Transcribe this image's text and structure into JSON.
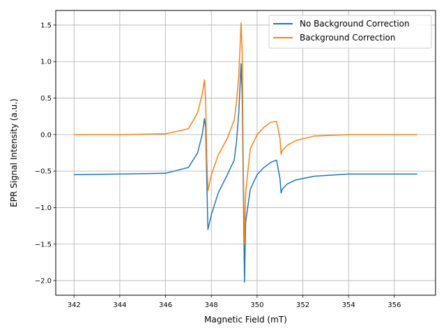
{
  "chart_data": {
    "type": "line",
    "title": "",
    "xlabel": "Magnetic Field (mT)",
    "ylabel": "EPR Signal Intensity (a.u.)",
    "xlim": [
      341.2,
      357.8
    ],
    "ylim": [
      -2.2,
      1.7
    ],
    "xticks": [
      342,
      344,
      346,
      348,
      350,
      352,
      354,
      356
    ],
    "yticks": [
      -2.0,
      -1.5,
      -1.0,
      -0.5,
      0.0,
      0.5,
      1.0,
      1.5
    ],
    "xtick_labels": [
      "342",
      "344",
      "346",
      "348",
      "350",
      "352",
      "354",
      "356"
    ],
    "ytick_labels": [
      "−2.0",
      "−1.5",
      "−1.0",
      "−0.5",
      "0.0",
      "0.5",
      "1.0",
      "1.5"
    ],
    "grid": true,
    "legend_position": "top-right",
    "series": [
      {
        "name": "No Background Correction",
        "color": "#1f77b4",
        "x": [
          342.0,
          344.0,
          346.0,
          347.0,
          347.4,
          347.6,
          347.7,
          347.75,
          347.8,
          347.85,
          348.0,
          348.3,
          348.7,
          349.0,
          349.1,
          349.2,
          349.3,
          349.35,
          349.4,
          349.45,
          349.5,
          349.7,
          350.0,
          350.3,
          350.6,
          350.85,
          351.0,
          351.05,
          351.1,
          351.3,
          351.7,
          352.5,
          354.0,
          357.0
        ],
        "y": [
          -0.55,
          -0.54,
          -0.53,
          -0.45,
          -0.25,
          0.0,
          0.22,
          0.1,
          -0.6,
          -1.3,
          -1.1,
          -0.8,
          -0.55,
          -0.35,
          -0.1,
          0.3,
          0.97,
          0.5,
          -0.8,
          -2.02,
          -1.2,
          -0.75,
          -0.55,
          -0.45,
          -0.38,
          -0.35,
          -0.6,
          -0.8,
          -0.75,
          -0.68,
          -0.62,
          -0.57,
          -0.54,
          -0.54
        ]
      },
      {
        "name": "Background Correction",
        "color": "#ff7f0e",
        "x": [
          342.0,
          344.0,
          346.0,
          347.0,
          347.4,
          347.6,
          347.7,
          347.75,
          347.8,
          347.85,
          348.0,
          348.3,
          348.7,
          349.0,
          349.1,
          349.2,
          349.3,
          349.35,
          349.4,
          349.45,
          349.5,
          349.7,
          350.0,
          350.3,
          350.6,
          350.85,
          351.0,
          351.05,
          351.1,
          351.3,
          351.7,
          352.5,
          354.0,
          357.0
        ],
        "y": [
          0.0,
          0.0,
          0.01,
          0.08,
          0.3,
          0.55,
          0.75,
          0.5,
          -0.3,
          -0.77,
          -0.55,
          -0.28,
          -0.05,
          0.2,
          0.45,
          0.8,
          1.53,
          1.1,
          -0.5,
          -1.5,
          -0.8,
          -0.2,
          0.0,
          0.1,
          0.17,
          0.18,
          -0.05,
          -0.27,
          -0.22,
          -0.15,
          -0.08,
          -0.02,
          0.0,
          0.0
        ]
      }
    ]
  }
}
